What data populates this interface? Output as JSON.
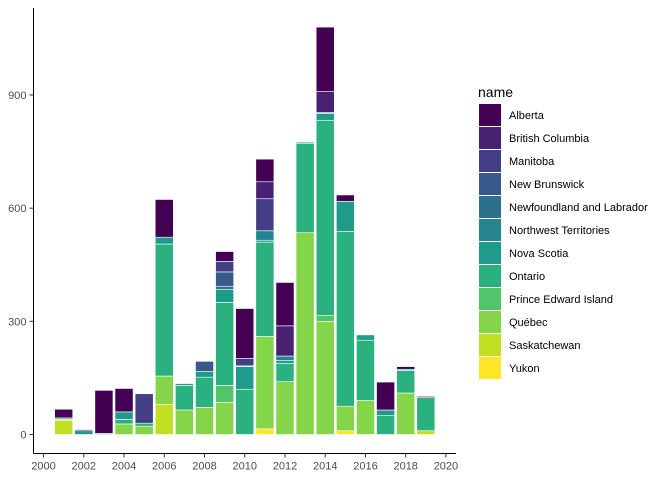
{
  "chart_data": {
    "type": "bar",
    "stacked": true,
    "legend_title": "name",
    "legend_position": "right",
    "grid": false,
    "xlim": [
      1999.5,
      2020.5
    ],
    "ylim": [
      0,
      1080
    ],
    "x_ticks": [
      2000,
      2002,
      2004,
      2006,
      2008,
      2010,
      2012,
      2014,
      2016,
      2018,
      2020
    ],
    "y_ticks": [
      0,
      300,
      600,
      900
    ],
    "series": [
      {
        "name": "Alberta",
        "color": "#440154"
      },
      {
        "name": "British Columbia",
        "color": "#482173"
      },
      {
        "name": "Manitoba",
        "color": "#433E85"
      },
      {
        "name": "New Brunswick",
        "color": "#38598C"
      },
      {
        "name": "Newfoundland and Labrador",
        "color": "#2D708E"
      },
      {
        "name": "Northwest Territories",
        "color": "#25858E"
      },
      {
        "name": "Nova Scotia",
        "color": "#1E9B8A"
      },
      {
        "name": "Ontario",
        "color": "#2BB07F"
      },
      {
        "name": "Prince Edward Island",
        "color": "#51C56A"
      },
      {
        "name": "Québec",
        "color": "#85D54A"
      },
      {
        "name": "Saskatchewan",
        "color": "#C2DF23"
      },
      {
        "name": "Yukon",
        "color": "#FDE725"
      }
    ],
    "years": [
      {
        "x": 2001,
        "values": {
          "Saskatchewan": 38,
          "Québec": 2,
          "Ontario": 4,
          "Alberta": 23
        }
      },
      {
        "x": 2002,
        "values": {
          "Nova Scotia": 10,
          "Alberta": 3
        }
      },
      {
        "x": 2003,
        "values": {
          "Ontario": 3,
          "Alberta": 114
        }
      },
      {
        "x": 2004,
        "values": {
          "Québec": 28,
          "Ontario": 12,
          "Nova Scotia": 20,
          "Alberta": 62
        }
      },
      {
        "x": 2005,
        "values": {
          "Québec": 22,
          "Ontario": 8,
          "Manitoba": 78
        }
      },
      {
        "x": 2006,
        "values": {
          "Saskatchewan": 80,
          "Québec": 75,
          "Ontario": 350,
          "Nova Scotia": 18,
          "Alberta": 100
        }
      },
      {
        "x": 2007,
        "values": {
          "Québec": 65,
          "Ontario": 65,
          "Nova Scotia": 5
        }
      },
      {
        "x": 2008,
        "values": {
          "Québec": 72,
          "Ontario": 80,
          "Nova Scotia": 15,
          "New Brunswick": 27
        }
      },
      {
        "x": 2009,
        "values": {
          "Québec": 85,
          "Prince Edward Island": 45,
          "Ontario": 220,
          "Nova Scotia": 35,
          "Newfoundland and Labrador": 8,
          "New Brunswick": 38,
          "Manitoba": 28,
          "Alberta": 26
        }
      },
      {
        "x": 2010,
        "values": {
          "Ontario": 120,
          "Nova Scotia": 60,
          "Northwest Territories": 2,
          "Manitoba": 20,
          "Alberta": 132
        }
      },
      {
        "x": 2011,
        "values": {
          "Yukon": 15,
          "Québec": 245,
          "Ontario": 250,
          "Nova Scotia": 5,
          "Northwest Territories": 25,
          "Manitoba": 85,
          "British Columbia": 45,
          "Alberta": 60
        }
      },
      {
        "x": 2012,
        "values": {
          "Québec": 140,
          "Ontario": 48,
          "Nova Scotia": 8,
          "Northwest Territories": 12,
          "British Columbia": 80,
          "Alberta": 115
        }
      },
      {
        "x": 2013,
        "values": {
          "Québec": 535,
          "Ontario": 237,
          "Nova Scotia": 3
        }
      },
      {
        "x": 2014,
        "values": {
          "Québec": 300,
          "Prince Edward Island": 15,
          "Ontario": 518,
          "Nova Scotia": 18,
          "Manitoba": 3,
          "British Columbia": 55,
          "Alberta": 171
        }
      },
      {
        "x": 2015,
        "values": {
          "Yukon": 10,
          "Québec": 65,
          "Ontario": 463,
          "Nova Scotia": 80,
          "Alberta": 17
        }
      },
      {
        "x": 2016,
        "values": {
          "Québec": 90,
          "Ontario": 160,
          "Nova Scotia": 14
        }
      },
      {
        "x": 2017,
        "values": {
          "Ontario": 50,
          "Nova Scotia": 15,
          "Alberta": 74
        }
      },
      {
        "x": 2018,
        "values": {
          "Québec": 110,
          "Ontario": 60,
          "Nova Scotia": 3,
          "Alberta": 7
        }
      },
      {
        "x": 2019,
        "values": {
          "Saskatchewan": 10,
          "Ontario": 88,
          "Alberta": 3
        }
      }
    ]
  }
}
